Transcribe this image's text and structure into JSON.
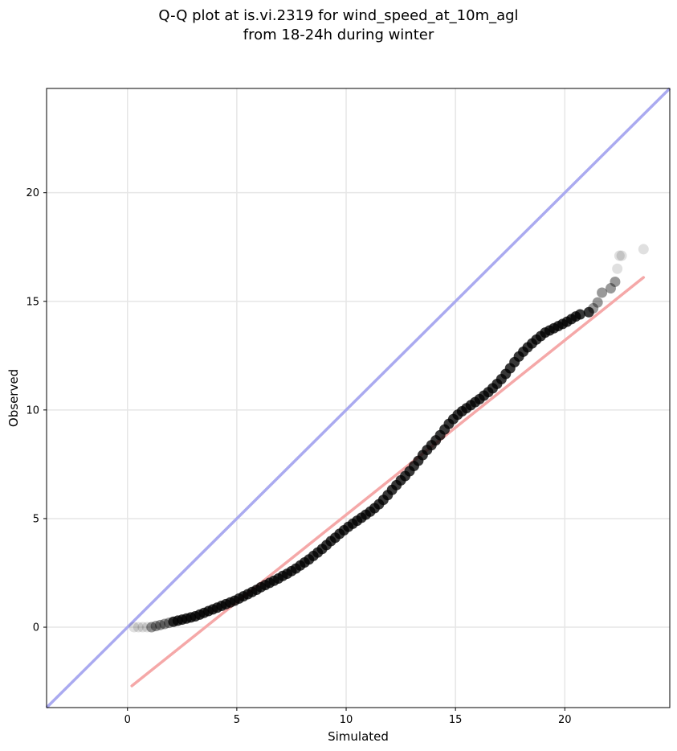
{
  "chart_data": {
    "type": "scatter",
    "title_line1": "Q-Q plot at is.vi.2319 for wind_speed_at_10m_agl",
    "title_line2": "from 18-24h during winter",
    "xlabel": "Simulated",
    "ylabel": "Observed",
    "xlim": [
      -3.7,
      24.8
    ],
    "ylim": [
      -3.7,
      24.8
    ],
    "xticks": [
      0,
      5,
      10,
      15,
      20
    ],
    "yticks": [
      0,
      5,
      10,
      15,
      20
    ],
    "grid": true,
    "identity_line": {
      "color": "#aaaaf0",
      "from": [
        -3.7,
        -3.7
      ],
      "to": [
        24.8,
        24.8
      ]
    },
    "fit_line": {
      "color": "#f5a8a8",
      "from": [
        0.2,
        -2.7
      ],
      "to": [
        23.6,
        16.1
      ]
    },
    "point_color": "#000000",
    "points": [
      [
        0.3,
        0.0
      ],
      [
        0.5,
        0.0
      ],
      [
        0.7,
        0.0
      ],
      [
        0.9,
        0.0
      ],
      [
        1.1,
        0.0
      ],
      [
        1.3,
        0.05
      ],
      [
        1.5,
        0.1
      ],
      [
        1.7,
        0.15
      ],
      [
        1.9,
        0.2
      ],
      [
        2.1,
        0.25
      ],
      [
        2.3,
        0.3
      ],
      [
        2.5,
        0.35
      ],
      [
        2.7,
        0.4
      ],
      [
        2.9,
        0.45
      ],
      [
        3.1,
        0.5
      ],
      [
        3.3,
        0.58
      ],
      [
        3.5,
        0.66
      ],
      [
        3.7,
        0.74
      ],
      [
        3.9,
        0.82
      ],
      [
        4.1,
        0.9
      ],
      [
        4.3,
        0.98
      ],
      [
        4.5,
        1.06
      ],
      [
        4.7,
        1.14
      ],
      [
        4.9,
        1.22
      ],
      [
        5.1,
        1.32
      ],
      [
        5.3,
        1.42
      ],
      [
        5.5,
        1.52
      ],
      [
        5.7,
        1.62
      ],
      [
        5.9,
        1.72
      ],
      [
        6.1,
        1.84
      ],
      [
        6.3,
        1.94
      ],
      [
        6.5,
        2.04
      ],
      [
        6.7,
        2.14
      ],
      [
        6.9,
        2.24
      ],
      [
        7.1,
        2.36
      ],
      [
        7.3,
        2.46
      ],
      [
        7.5,
        2.58
      ],
      [
        7.7,
        2.7
      ],
      [
        7.9,
        2.84
      ],
      [
        8.1,
        2.98
      ],
      [
        8.3,
        3.12
      ],
      [
        8.5,
        3.28
      ],
      [
        8.7,
        3.44
      ],
      [
        8.9,
        3.6
      ],
      [
        9.1,
        3.78
      ],
      [
        9.3,
        3.96
      ],
      [
        9.5,
        4.12
      ],
      [
        9.7,
        4.3
      ],
      [
        9.9,
        4.46
      ],
      [
        10.1,
        4.62
      ],
      [
        10.3,
        4.76
      ],
      [
        10.5,
        4.9
      ],
      [
        10.7,
        5.04
      ],
      [
        10.9,
        5.18
      ],
      [
        11.1,
        5.32
      ],
      [
        11.3,
        5.48
      ],
      [
        11.5,
        5.66
      ],
      [
        11.7,
        5.86
      ],
      [
        11.9,
        6.08
      ],
      [
        12.1,
        6.32
      ],
      [
        12.3,
        6.54
      ],
      [
        12.5,
        6.76
      ],
      [
        12.7,
        6.96
      ],
      [
        12.9,
        7.18
      ],
      [
        13.1,
        7.42
      ],
      [
        13.3,
        7.66
      ],
      [
        13.5,
        7.92
      ],
      [
        13.7,
        8.16
      ],
      [
        13.9,
        8.38
      ],
      [
        14.1,
        8.6
      ],
      [
        14.3,
        8.84
      ],
      [
        14.5,
        9.1
      ],
      [
        14.7,
        9.36
      ],
      [
        14.9,
        9.58
      ],
      [
        15.1,
        9.78
      ],
      [
        15.3,
        9.94
      ],
      [
        15.5,
        10.08
      ],
      [
        15.7,
        10.22
      ],
      [
        15.9,
        10.36
      ],
      [
        16.1,
        10.5
      ],
      [
        16.3,
        10.66
      ],
      [
        16.5,
        10.82
      ],
      [
        16.7,
        11.0
      ],
      [
        16.9,
        11.2
      ],
      [
        17.1,
        11.42
      ],
      [
        17.3,
        11.66
      ],
      [
        17.5,
        11.92
      ],
      [
        17.7,
        12.2
      ],
      [
        17.9,
        12.46
      ],
      [
        18.1,
        12.68
      ],
      [
        18.3,
        12.88
      ],
      [
        18.5,
        13.06
      ],
      [
        18.7,
        13.24
      ],
      [
        18.9,
        13.4
      ],
      [
        19.1,
        13.56
      ],
      [
        19.3,
        13.66
      ],
      [
        19.5,
        13.76
      ],
      [
        19.7,
        13.86
      ],
      [
        19.9,
        13.96
      ],
      [
        20.1,
        14.06
      ],
      [
        20.3,
        14.18
      ],
      [
        20.5,
        14.3
      ],
      [
        20.7,
        14.4
      ],
      [
        21.1,
        14.5
      ],
      [
        21.3,
        14.68
      ],
      [
        21.5,
        14.95
      ],
      [
        21.7,
        15.4
      ],
      [
        22.1,
        15.6
      ],
      [
        22.3,
        15.9
      ],
      [
        22.4,
        16.5
      ],
      [
        22.5,
        17.1
      ],
      [
        22.6,
        17.1
      ],
      [
        23.6,
        17.4
      ]
    ]
  }
}
